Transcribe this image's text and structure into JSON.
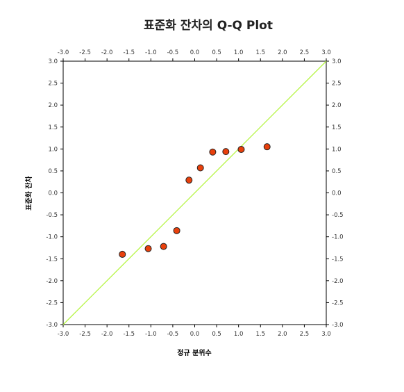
{
  "chart_data": {
    "type": "scatter",
    "title": "표준화 잔차의 Q-Q Plot",
    "xlabel": "정규 분위수",
    "ylabel": "표준화 잔차",
    "xlim": [
      -3.0,
      3.0
    ],
    "ylim": [
      -3.0,
      3.0
    ],
    "ticks": [
      "-3.0",
      "-2.5",
      "-2.0",
      "-1.5",
      "-1.0",
      "-0.5",
      "0.0",
      "0.5",
      "1.0",
      "1.5",
      "2.0",
      "2.5",
      "3.0"
    ],
    "tick_values": [
      -3.0,
      -2.5,
      -2.0,
      -1.5,
      -1.0,
      -0.5,
      0.0,
      0.5,
      1.0,
      1.5,
      2.0,
      2.5,
      3.0
    ],
    "grid": false,
    "reference_line": {
      "from": [
        -3.0,
        -3.0
      ],
      "to": [
        3.0,
        3.0
      ],
      "color": "#b5f542"
    },
    "points": {
      "x": [
        -1.65,
        -1.06,
        -0.71,
        -0.41,
        -0.13,
        0.13,
        0.41,
        0.71,
        1.06,
        1.65
      ],
      "y": [
        -1.4,
        -1.27,
        -1.22,
        -0.86,
        0.29,
        0.57,
        0.93,
        0.94,
        0.99,
        1.05
      ],
      "fill": "#e8400c",
      "stroke": "#222222"
    }
  }
}
